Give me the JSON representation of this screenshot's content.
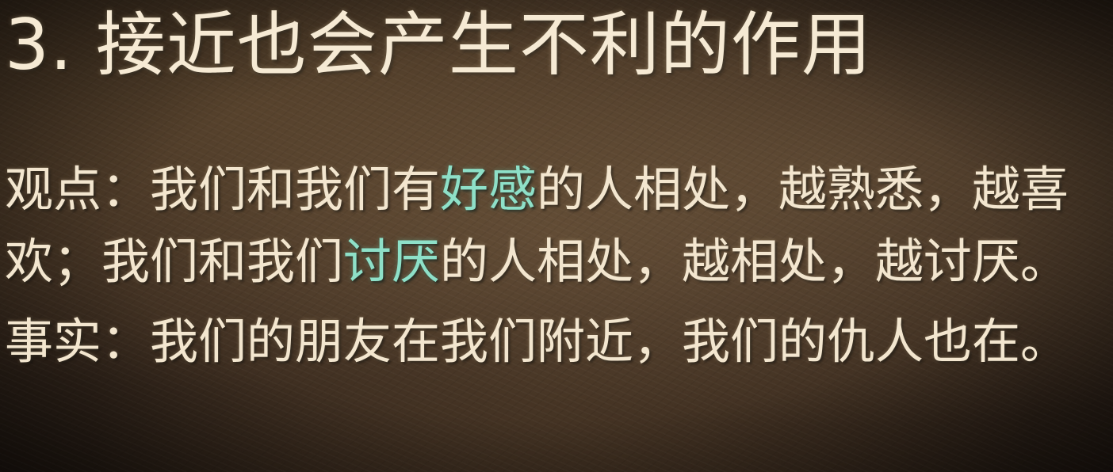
{
  "title": "3. 接近也会产生不利的作用",
  "viewpoint": {
    "label": "观点：",
    "part1": "我们和我们有",
    "highlight1": "好感",
    "part2": "的人相处，越熟悉，越喜欢；我们和我们",
    "highlight2": "讨厌",
    "part3": "的人相处，越相处，越讨厌。"
  },
  "fact": {
    "label": "事实：",
    "text": "我们的朋友在我们附近，我们的仇人也在。"
  },
  "colors": {
    "text": "#f3e6cf",
    "highlight": "#8ee0c8",
    "background": "#3a2b1f"
  }
}
